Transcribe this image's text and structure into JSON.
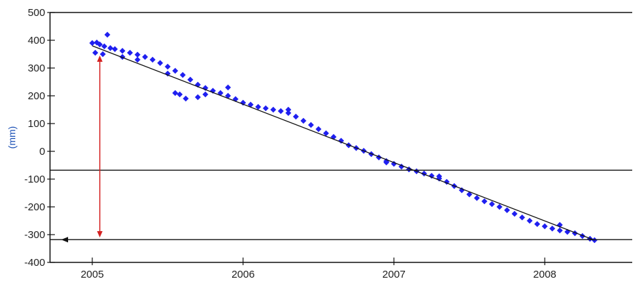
{
  "chart_data": {
    "type": "scatter",
    "title": "",
    "xlabel": "",
    "ylabel": "(mm)",
    "xlim": [
      2004.72,
      2008.58
    ],
    "ylim": [
      -400,
      500
    ],
    "x_ticks": [
      2005,
      2006,
      2007,
      2008
    ],
    "x_tick_labels": [
      "2005",
      "2006",
      "2007",
      "2008"
    ],
    "y_ticks": [
      500,
      400,
      300,
      200,
      100,
      0,
      -100,
      -200,
      -300,
      -400
    ],
    "y_tick_labels": [
      "500",
      "400",
      "300",
      "200",
      "100",
      "0",
      "-100",
      "-200",
      "-300",
      "-400"
    ],
    "grid": false,
    "legend": "none",
    "colors": {
      "points": "#1f1ff0",
      "trend_line": "#111111",
      "reference_lines": "#111111",
      "arrow": "#d42020"
    },
    "series": [
      {
        "values": [
          [
            2005.0,
            390
          ],
          [
            2005.03,
            392
          ],
          [
            2005.05,
            385
          ],
          [
            2005.08,
            378
          ],
          [
            2005.1,
            420
          ],
          [
            2005.12,
            372
          ],
          [
            2005.15,
            368
          ],
          [
            2005.2,
            362
          ],
          [
            2005.25,
            355
          ],
          [
            2005.3,
            348
          ],
          [
            2005.35,
            340
          ],
          [
            2005.4,
            330
          ],
          [
            2005.45,
            318
          ],
          [
            2005.5,
            305
          ],
          [
            2005.55,
            290
          ],
          [
            2005.6,
            275
          ],
          [
            2005.65,
            258
          ],
          [
            2005.7,
            240
          ],
          [
            2005.75,
            228
          ],
          [
            2005.8,
            218
          ],
          [
            2005.85,
            210
          ],
          [
            2005.9,
            200
          ],
          [
            2005.95,
            188
          ],
          [
            2006.0,
            175
          ],
          [
            2006.05,
            168
          ],
          [
            2006.1,
            160
          ],
          [
            2006.15,
            155
          ],
          [
            2006.2,
            150
          ],
          [
            2006.25,
            145
          ],
          [
            2006.3,
            138
          ],
          [
            2006.35,
            125
          ],
          [
            2006.4,
            110
          ],
          [
            2006.45,
            95
          ],
          [
            2006.5,
            80
          ],
          [
            2006.55,
            65
          ],
          [
            2006.6,
            52
          ],
          [
            2006.65,
            38
          ],
          [
            2006.7,
            22
          ],
          [
            2006.75,
            12
          ],
          [
            2006.8,
            2
          ],
          [
            2006.85,
            -10
          ],
          [
            2006.9,
            -22
          ],
          [
            2006.95,
            -35
          ],
          [
            2007.0,
            -45
          ],
          [
            2007.05,
            -55
          ],
          [
            2007.1,
            -65
          ],
          [
            2007.15,
            -72
          ],
          [
            2007.2,
            -80
          ],
          [
            2007.25,
            -88
          ],
          [
            2007.3,
            -98
          ],
          [
            2007.35,
            -110
          ],
          [
            2007.4,
            -125
          ],
          [
            2007.45,
            -140
          ],
          [
            2007.5,
            -155
          ],
          [
            2007.55,
            -168
          ],
          [
            2007.6,
            -180
          ],
          [
            2007.65,
            -190
          ],
          [
            2007.7,
            -200
          ],
          [
            2007.75,
            -212
          ],
          [
            2007.8,
            -225
          ],
          [
            2007.85,
            -238
          ],
          [
            2007.9,
            -250
          ],
          [
            2007.95,
            -262
          ],
          [
            2008.0,
            -270
          ],
          [
            2008.05,
            -278
          ],
          [
            2008.1,
            -285
          ],
          [
            2008.15,
            -290
          ],
          [
            2008.2,
            -295
          ],
          [
            2008.25,
            -305
          ],
          [
            2008.3,
            -315
          ],
          [
            2008.33,
            -320
          ],
          [
            2005.02,
            355
          ],
          [
            2005.07,
            350
          ],
          [
            2005.2,
            340
          ],
          [
            2005.3,
            330
          ],
          [
            2005.5,
            280
          ],
          [
            2005.55,
            210
          ],
          [
            2005.58,
            205
          ],
          [
            2005.62,
            190
          ],
          [
            2005.7,
            195
          ],
          [
            2005.75,
            205
          ],
          [
            2005.9,
            230
          ],
          [
            2006.3,
            150
          ],
          [
            2006.95,
            -40
          ],
          [
            2007.3,
            -90
          ],
          [
            2008.1,
            -265
          ]
        ]
      }
    ],
    "trend_line": {
      "x": [
        2005.0,
        2008.33
      ],
      "y": [
        380,
        -320
      ]
    },
    "reference_lines": [
      {
        "y": -68,
        "label": ""
      },
      {
        "y": -318,
        "label": ""
      }
    ],
    "arrow": {
      "x": 2005.05,
      "y_from": 345,
      "y_to": -310
    }
  }
}
